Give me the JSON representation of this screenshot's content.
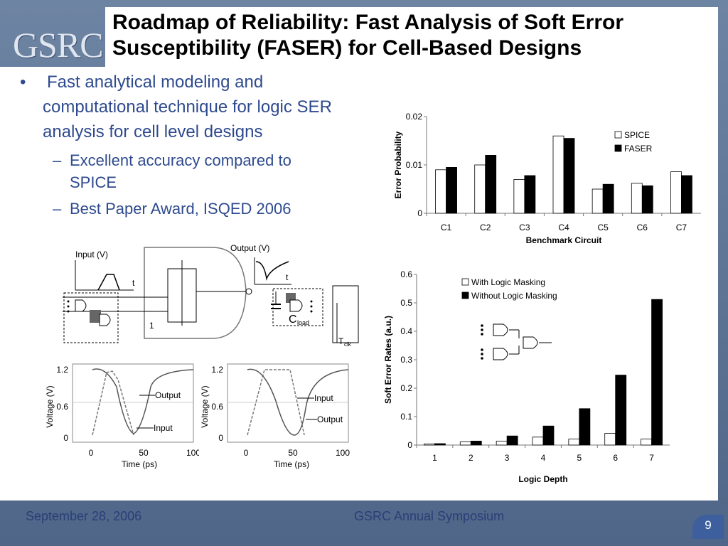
{
  "title": "Roadmap of Reliability: Fast Analysis of Soft Error Susceptibility (FASER) for Cell-Based Designs",
  "logo_text": "GSRC",
  "bullets": {
    "main_marker": "•",
    "main_line1": "Fast analytical modeling and",
    "main_line2": "computational technique for logic SER",
    "main_line3": "analysis for cell level designs",
    "sub_marker": "–",
    "sub1_line1": "Excellent accuracy compared to",
    "sub1_line2": "SPICE",
    "sub2": "Best Paper Award, ISQED 2006"
  },
  "footer": {
    "date": "September 28, 2006",
    "event": "GSRC Annual Symposium",
    "page": "9"
  },
  "diagram": {
    "input_label": "Input (V)",
    "output_label": "Output (V)",
    "t1": "t",
    "t2": "t",
    "c_load": "C",
    "c_load_sub": "load",
    "node_1": "1",
    "t_clk": "T",
    "t_clk_sub": "clk"
  },
  "waveform_left": {
    "ylabel": "Voltage (V)",
    "xlabel": "Time (ps)",
    "yticks": [
      "1.2",
      "0.6",
      "0"
    ],
    "xticks": [
      "0",
      "50",
      "100"
    ],
    "label_output": "Output",
    "label_input": "Input"
  },
  "waveform_right": {
    "ylabel": "Voltage (V)",
    "xlabel": "Time (ps)",
    "yticks": [
      "1.2",
      "0.6",
      "0"
    ],
    "xticks": [
      "0",
      "50",
      "100"
    ],
    "label_input": "Input",
    "label_output": "Output"
  },
  "chart_data": [
    {
      "type": "bar",
      "categories": [
        "C1",
        "C2",
        "C3",
        "C4",
        "C5",
        "C6",
        "C7"
      ],
      "series": [
        {
          "name": "SPICE",
          "values": [
            0.009,
            0.01,
            0.007,
            0.016,
            0.005,
            0.0062,
            0.0086
          ]
        },
        {
          "name": "FASER",
          "values": [
            0.0095,
            0.012,
            0.0078,
            0.0155,
            0.006,
            0.0057,
            0.0078
          ]
        }
      ],
      "xlabel": "Benchmark Circuit",
      "ylabel": "Error Probability",
      "ylim": [
        0,
        0.02
      ],
      "yticks": [
        "0",
        "0.01",
        "0.02"
      ],
      "legend": "top-right",
      "colors": [
        "#ffffff",
        "#000000"
      ]
    },
    {
      "type": "bar",
      "categories": [
        "1",
        "2",
        "3",
        "4",
        "5",
        "6",
        "7"
      ],
      "series": [
        {
          "name": "With Logic Masking",
          "values": [
            0.004,
            0.011,
            0.014,
            0.028,
            0.021,
            0.041,
            0.021
          ]
        },
        {
          "name": "Without Logic Masking",
          "values": [
            0.005,
            0.014,
            0.032,
            0.067,
            0.128,
            0.246,
            0.512
          ]
        }
      ],
      "xlabel": "Logic Depth",
      "ylabel": "Soft Error Rates (a.u.)",
      "ylim": [
        0,
        0.6
      ],
      "yticks": [
        "0",
        "0.1",
        "0.2",
        "0.3",
        "0.4",
        "0.5",
        "0.6"
      ],
      "legend": "top-left",
      "colors": [
        "#ffffff",
        "#000000"
      ]
    }
  ]
}
